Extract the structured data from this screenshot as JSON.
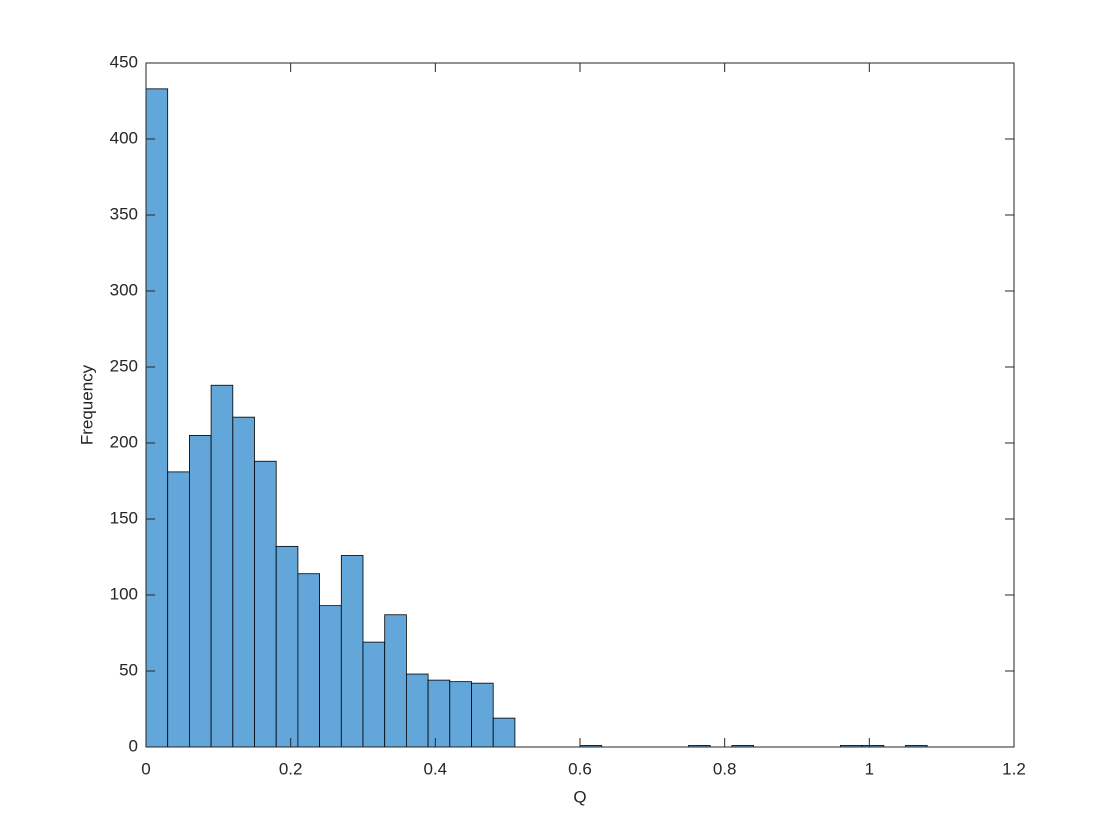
{
  "chart_data": {
    "type": "histogram",
    "xlabel": "Q",
    "ylabel": "Frequency",
    "bins": [
      0,
      0.03,
      0.06,
      0.09,
      0.12,
      0.15,
      0.18,
      0.21,
      0.24,
      0.27,
      0.3,
      0.33,
      0.36,
      0.39,
      0.42,
      0.45,
      0.48,
      0.51,
      0.54,
      0.57,
      0.6,
      0.63,
      0.66,
      0.69,
      0.72,
      0.75,
      0.78,
      0.81,
      0.84,
      0.87,
      0.9,
      0.93,
      0.96,
      0.99,
      1.02,
      1.05,
      1.08
    ],
    "counts": [
      433,
      181,
      205,
      238,
      217,
      188,
      132,
      114,
      93,
      126,
      69,
      87,
      48,
      44,
      43,
      42,
      19,
      0,
      0,
      0,
      1,
      0,
      0,
      0,
      0,
      1,
      0,
      1,
      0,
      0,
      0,
      0,
      1,
      1,
      0,
      1
    ],
    "color": "#62a6da",
    "xlim": [
      0,
      1.2
    ],
    "xticks": [
      0,
      0.2,
      0.4,
      0.6,
      0.8,
      1,
      1.2
    ],
    "ylim": [
      0,
      450
    ],
    "yticks": [
      0,
      50,
      100,
      150,
      200,
      250,
      300,
      350,
      400,
      450
    ]
  }
}
